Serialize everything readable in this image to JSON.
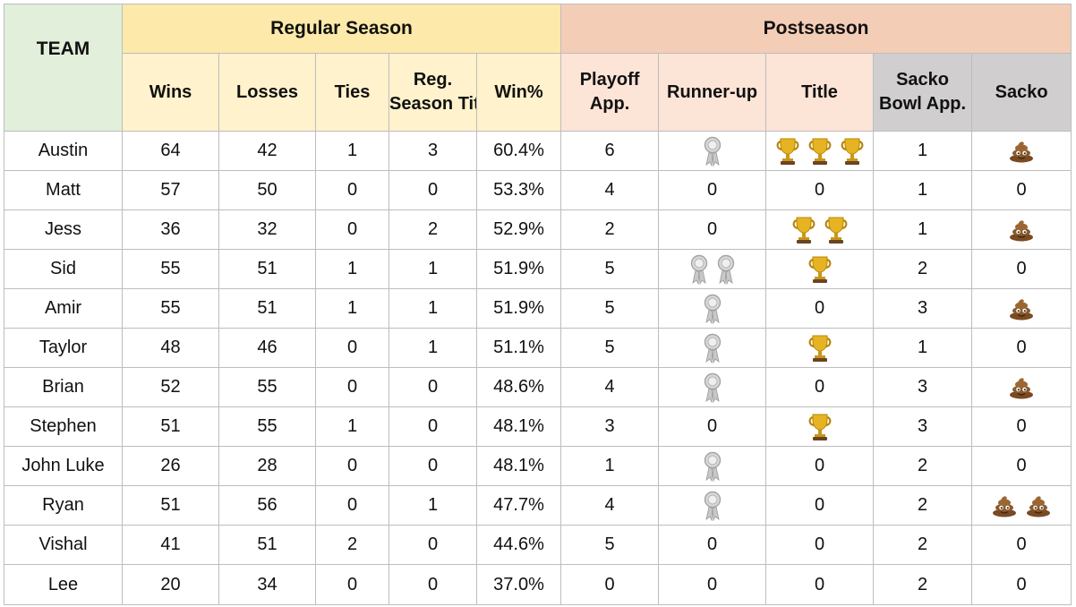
{
  "header": {
    "team": "TEAM",
    "regular_season": "Regular Season",
    "postseason": "Postseason",
    "wins": "Wins",
    "losses": "Losses",
    "ties": "Ties",
    "reg_title_1": "Reg.",
    "reg_title_2": "Season Title",
    "win_pct": "Win%",
    "playoff_1": "Playoff",
    "playoff_2": "App.",
    "runner_up": "Runner-up",
    "title": "Title",
    "sacko_bowl_1": "Sacko",
    "sacko_bowl_2": "Bowl App.",
    "sacko": "Sacko"
  },
  "icons": {
    "runner_up": "ribbon-icon",
    "title": "trophy-icon",
    "sacko": "poop-icon"
  },
  "rows": [
    {
      "team": "Austin",
      "wins": "64",
      "losses": "42",
      "ties": "1",
      "reg_title": "3",
      "win_pct": "60.4%",
      "playoff": "6",
      "runner_up": 1,
      "title": 3,
      "sacko_bowl": "1",
      "sacko": 1
    },
    {
      "team": "Matt",
      "wins": "57",
      "losses": "50",
      "ties": "0",
      "reg_title": "0",
      "win_pct": "53.3%",
      "playoff": "4",
      "runner_up": 0,
      "title": 0,
      "sacko_bowl": "1",
      "sacko": 0
    },
    {
      "team": "Jess",
      "wins": "36",
      "losses": "32",
      "ties": "0",
      "reg_title": "2",
      "win_pct": "52.9%",
      "playoff": "2",
      "runner_up": 0,
      "title": 2,
      "sacko_bowl": "1",
      "sacko": 1
    },
    {
      "team": "Sid",
      "wins": "55",
      "losses": "51",
      "ties": "1",
      "reg_title": "1",
      "win_pct": "51.9%",
      "playoff": "5",
      "runner_up": 2,
      "title": 1,
      "sacko_bowl": "2",
      "sacko": 0
    },
    {
      "team": "Amir",
      "wins": "55",
      "losses": "51",
      "ties": "1",
      "reg_title": "1",
      "win_pct": "51.9%",
      "playoff": "5",
      "runner_up": 1,
      "title": 0,
      "sacko_bowl": "3",
      "sacko": 1
    },
    {
      "team": "Taylor",
      "wins": "48",
      "losses": "46",
      "ties": "0",
      "reg_title": "1",
      "win_pct": "51.1%",
      "playoff": "5",
      "runner_up": 1,
      "title": 1,
      "sacko_bowl": "1",
      "sacko": 0
    },
    {
      "team": "Brian",
      "wins": "52",
      "losses": "55",
      "ties": "0",
      "reg_title": "0",
      "win_pct": "48.6%",
      "playoff": "4",
      "runner_up": 1,
      "title": 0,
      "sacko_bowl": "3",
      "sacko": 1
    },
    {
      "team": "Stephen",
      "wins": "51",
      "losses": "55",
      "ties": "1",
      "reg_title": "0",
      "win_pct": "48.1%",
      "playoff": "3",
      "runner_up": 0,
      "title": 1,
      "sacko_bowl": "3",
      "sacko": 0
    },
    {
      "team": "John Luke",
      "wins": "26",
      "losses": "28",
      "ties": "0",
      "reg_title": "0",
      "win_pct": "48.1%",
      "playoff": "1",
      "runner_up": 1,
      "title": 0,
      "sacko_bowl": "2",
      "sacko": 0
    },
    {
      "team": "Ryan",
      "wins": "51",
      "losses": "56",
      "ties": "0",
      "reg_title": "1",
      "win_pct": "47.7%",
      "playoff": "4",
      "runner_up": 1,
      "title": 0,
      "sacko_bowl": "2",
      "sacko": 2
    },
    {
      "team": "Vishal",
      "wins": "41",
      "losses": "51",
      "ties": "2",
      "reg_title": "0",
      "win_pct": "44.6%",
      "playoff": "5",
      "runner_up": 0,
      "title": 0,
      "sacko_bowl": "2",
      "sacko": 0
    },
    {
      "team": "Lee",
      "wins": "20",
      "losses": "34",
      "ties": "0",
      "reg_title": "0",
      "win_pct": "37.0%",
      "playoff": "0",
      "runner_up": 0,
      "title": 0,
      "sacko_bowl": "2",
      "sacko": 0
    }
  ]
}
